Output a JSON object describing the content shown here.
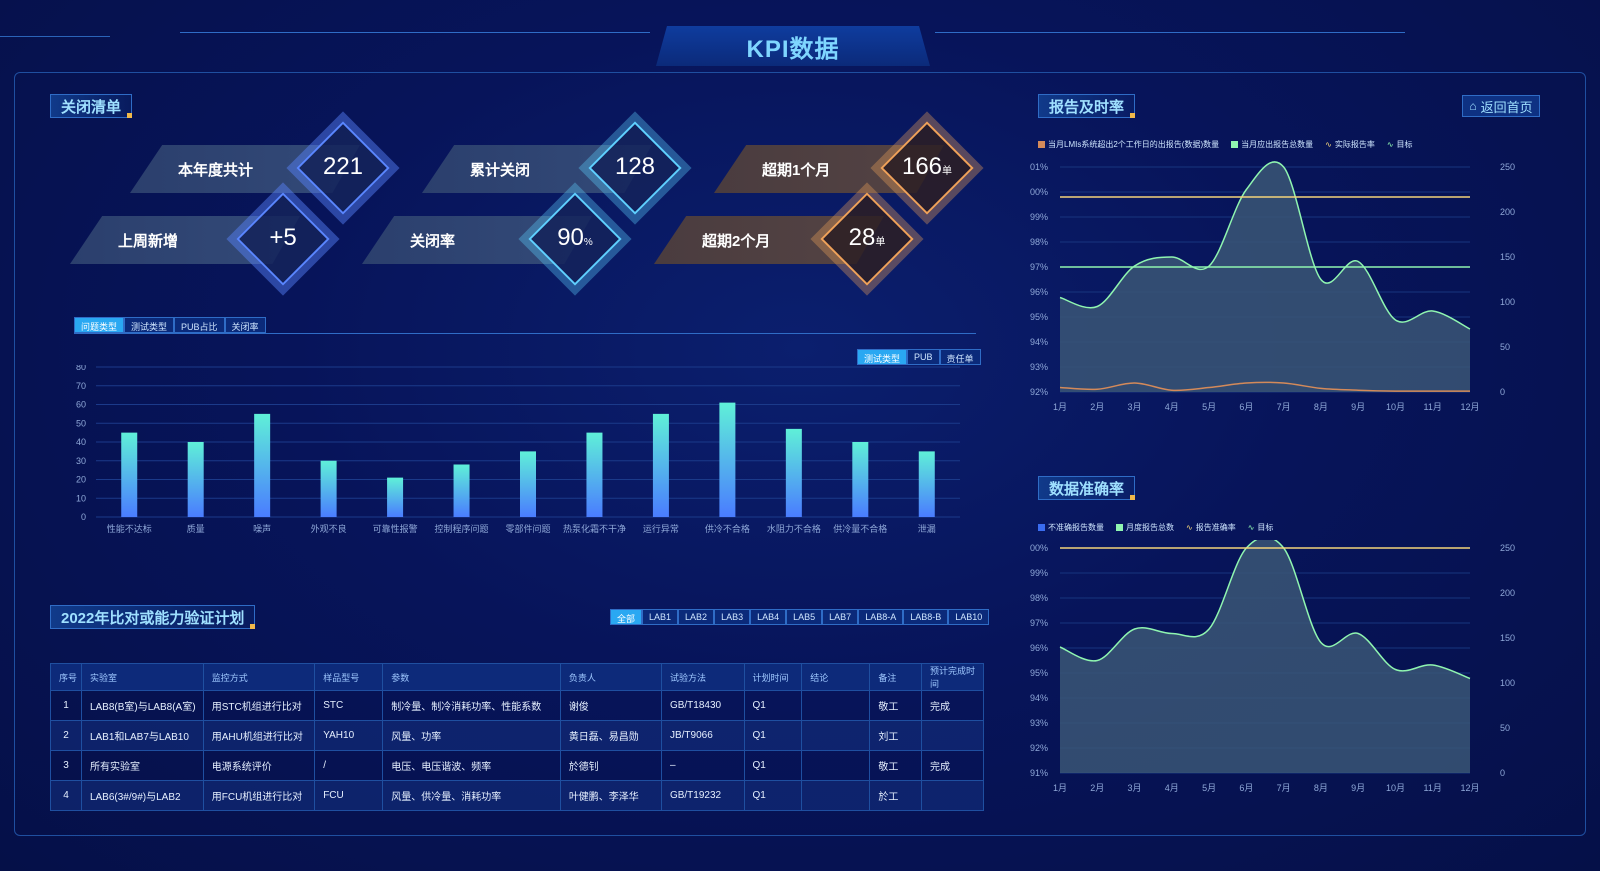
{
  "page_title": "KPI数据",
  "close_list": {
    "title": "关闭清单",
    "kpis": [
      {
        "label": "本年度共计",
        "value": "221",
        "unit": ""
      },
      {
        "label": "累计关闭",
        "value": "128",
        "unit": ""
      },
      {
        "label": "超期1个月",
        "value": "166",
        "unit": "单"
      },
      {
        "label": "上周新增",
        "value": "+5",
        "unit": ""
      },
      {
        "label": "关闭率",
        "value": "90",
        "unit": "%"
      },
      {
        "label": "超期2个月",
        "value": "28",
        "unit": "单"
      }
    ],
    "tabs": [
      "问题类型",
      "测试类型",
      "PUB占比",
      "关闭率"
    ],
    "sub_tabs": [
      "测试类型",
      "PUB",
      "责任单"
    ]
  },
  "bar_chart": {
    "type": "bar",
    "categories": [
      "性能不达标",
      "质量",
      "噪声",
      "外观不良",
      "可靠性报警",
      "控制程序问题",
      "零部件问题",
      "热泵化霜不干净",
      "运行异常",
      "供冷不合格",
      "水阻力不合格",
      "供冷量不合格",
      "泄漏"
    ],
    "values": [
      45,
      40,
      55,
      30,
      21,
      28,
      35,
      45,
      55,
      61,
      47,
      40,
      35
    ],
    "ylim": [
      0,
      80
    ],
    "yticks": [
      0,
      10,
      20,
      30,
      40,
      50,
      60,
      70,
      80
    ]
  },
  "plan": {
    "title": "2022年比对或能力验证计划",
    "lab_tabs": [
      "全部",
      "LAB1",
      "LAB2",
      "LAB3",
      "LAB4",
      "LAB5",
      "LAB7",
      "LAB8-A",
      "LAB8-B",
      "LAB10"
    ],
    "columns": [
      "序号",
      "实验室",
      "监控方式",
      "样品型号",
      "参数",
      "负责人",
      "试验方法",
      "计划时间",
      "结论",
      "备注",
      "预计完成时间"
    ],
    "rows": [
      [
        "1",
        "LAB8(B室)与LAB8(A室)",
        "用STC机组进行比对",
        "STC",
        "制冷量、制冷消耗功率、性能系数",
        "谢俊",
        "GB/T18430",
        "Q1",
        "",
        "敬工",
        "完成"
      ],
      [
        "2",
        "LAB1和LAB7与LAB10",
        "用AHU机组进行比对",
        "YAH10",
        "风量、功率",
        "黄日磊、易昌勋",
        "JB/T9066",
        "Q1",
        "",
        "刘工",
        ""
      ],
      [
        "3",
        "所有实验室",
        "电源系统评价",
        "/",
        "电压、电压谐波、频率",
        "於德钊",
        "–",
        "Q1",
        "",
        "敬工",
        "完成"
      ],
      [
        "4",
        "LAB6(3#/9#)与LAB2",
        "用FCU机组进行比对",
        "FCU",
        "风量、供冷量、消耗功率",
        "叶健鹏、李泽华",
        "GB/T19232",
        "Q1",
        "",
        "於工",
        ""
      ]
    ]
  },
  "report_timeliness": {
    "title": "报告及时率",
    "back_label": "返回首页",
    "legend": [
      "当月LMIs系统超出2个工作日的出报告(数据)数量",
      "当月应出报告总数量",
      "实际报告率",
      "目标"
    ],
    "chart_data": {
      "type": "line",
      "x": [
        "1月",
        "2月",
        "3月",
        "4月",
        "5月",
        "6月",
        "7月",
        "8月",
        "9月",
        "10月",
        "11月",
        "12月"
      ],
      "y_left_ticks": [
        "101%",
        "100%",
        "99%",
        "98%",
        "97%",
        "96%",
        "95%",
        "94%",
        "93%",
        "92%"
      ],
      "y_right_ticks": [
        "250",
        "200",
        "150",
        "100",
        "50",
        "0"
      ],
      "series": [
        {
          "name": "当月应出报告总数量",
          "values": [
            105,
            95,
            140,
            150,
            140,
            225,
            250,
            125,
            145,
            80,
            90,
            70
          ]
        },
        {
          "name": "当月LMIs系统超出2个工作日的出报告(数据)数量",
          "values": [
            5,
            3,
            10,
            2,
            5,
            10,
            10,
            4,
            2,
            1,
            1,
            1
          ]
        },
        {
          "name": "实际报告率",
          "values": [
            99.8,
            99.8,
            99.8,
            99.8,
            99.8,
            99.8,
            99.8,
            99.8,
            99.8,
            99.8,
            99.8,
            99.8
          ]
        },
        {
          "name": "目标",
          "values": [
            97,
            97,
            97,
            97,
            97,
            97,
            97,
            97,
            97,
            97,
            97,
            97
          ]
        }
      ]
    }
  },
  "data_accuracy": {
    "title": "数据准确率",
    "legend": [
      "不准确报告数量",
      "月度报告总数",
      "报告准确率",
      "目标"
    ],
    "chart_data": {
      "type": "line",
      "x": [
        "1月",
        "2月",
        "3月",
        "4月",
        "5月",
        "6月",
        "7月",
        "8月",
        "9月",
        "10月",
        "11月",
        "12月"
      ],
      "y_left_ticks": [
        "100%",
        "99%",
        "98%",
        "97%",
        "96%",
        "95%",
        "94%",
        "93%",
        "92%",
        "91%"
      ],
      "y_right_ticks": [
        "250",
        "200",
        "150",
        "100",
        "50",
        "0"
      ],
      "series": [
        {
          "name": "月度报告总数",
          "values": [
            140,
            125,
            160,
            155,
            160,
            250,
            250,
            145,
            155,
            115,
            120,
            105
          ]
        },
        {
          "name": "报告准确率",
          "values": [
            100,
            100,
            100,
            100,
            100,
            100,
            100,
            100,
            100,
            100,
            100,
            100
          ]
        }
      ]
    }
  },
  "colors": {
    "accent": "#2aa8f2",
    "bar_top": "#5ff0d8",
    "bar_bottom": "#4a7cff",
    "area": "#3a5a7a",
    "line_green": "#8ff5b0",
    "line_gold": "#f4d47a",
    "line_orange": "#d48a5a"
  }
}
